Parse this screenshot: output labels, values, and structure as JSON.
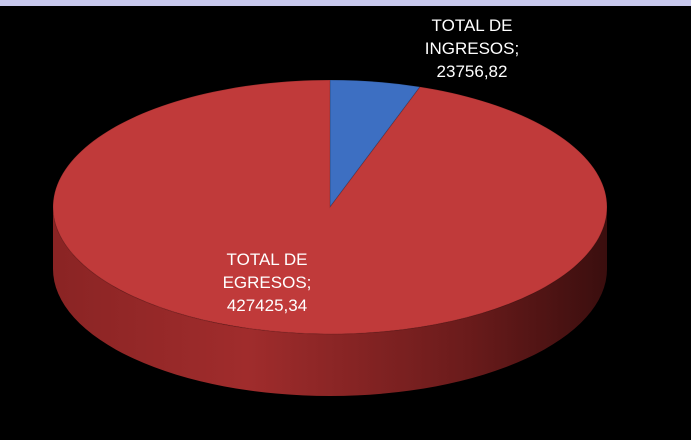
{
  "chart_data": {
    "type": "pie",
    "categories": [
      "TOTAL DE INGRESOS",
      "TOTAL DE EGRESOS"
    ],
    "values": [
      23756.82,
      427425.34
    ],
    "value_labels": [
      "23756,82",
      "427425,34"
    ],
    "label_separator": ";",
    "colors": [
      "#3d6fc2",
      "#c03a3a"
    ]
  }
}
